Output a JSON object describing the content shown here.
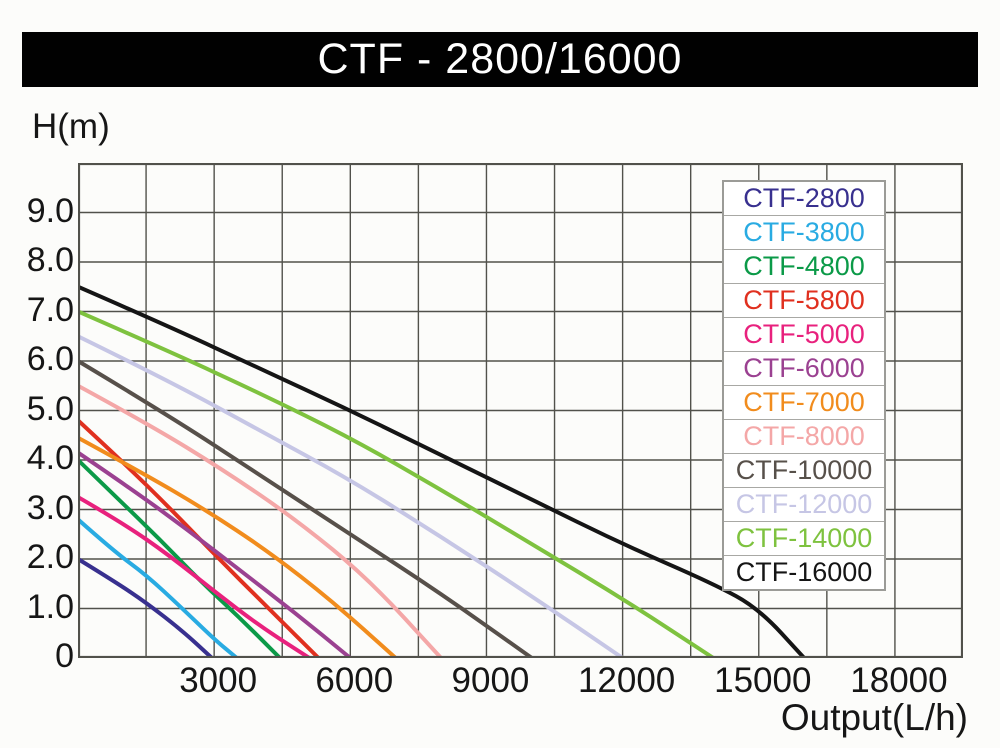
{
  "title": "CTF - 2800/16000",
  "colors": {
    "title_bg": "#010101",
    "title_text": "#ffffff",
    "grid": "#51514b",
    "axis_text": "#161616",
    "legend_border": "#9b9b97",
    "background": "#fcfcfa"
  },
  "chart_data": {
    "type": "line",
    "title": "CTF - 2800/16000",
    "xlabel": "Output(L/h)",
    "ylabel": "H(m)",
    "xlim": [
      0,
      19500
    ],
    "ylim": [
      0,
      10
    ],
    "grid": true,
    "grid_step_x": 1500,
    "grid_step_y": 1.0,
    "x_tick_values": [
      3000,
      6000,
      9000,
      12000,
      15000,
      18000
    ],
    "x_tick_labels": [
      "3000",
      "6000",
      "9000",
      "12000",
      "15000",
      "18000"
    ],
    "y_tick_values": [
      9,
      8,
      7,
      6,
      5,
      4,
      3,
      2,
      1,
      0
    ],
    "y_tick_labels": [
      "9.0",
      "8.0",
      "7.0",
      "6.0",
      "5.0",
      "4.0",
      "3.0",
      "2.0",
      "1.0",
      "0"
    ],
    "legend_position": "top-right-overlay",
    "series": [
      {
        "name": "CTF-2800",
        "color": "#38308f",
        "points": [
          [
            0,
            2.0
          ],
          [
            800,
            1.55
          ],
          [
            1500,
            1.12
          ],
          [
            2300,
            0.55
          ],
          [
            2950,
            0
          ]
        ]
      },
      {
        "name": "CTF-3800",
        "color": "#29abe2",
        "points": [
          [
            0,
            2.8
          ],
          [
            800,
            2.15
          ],
          [
            1500,
            1.68
          ],
          [
            2300,
            1.0
          ],
          [
            3000,
            0.38
          ],
          [
            3500,
            0
          ]
        ]
      },
      {
        "name": "CTF-4800",
        "color": "#0b9a48",
        "points": [
          [
            0,
            4.0
          ],
          [
            900,
            3.2
          ],
          [
            1800,
            2.4
          ],
          [
            2700,
            1.55
          ],
          [
            3600,
            0.78
          ],
          [
            4450,
            0
          ]
        ]
      },
      {
        "name": "CTF-5800",
        "color": "#e0301f",
        "points": [
          [
            0,
            4.8
          ],
          [
            1000,
            3.95
          ],
          [
            2000,
            3.05
          ],
          [
            3000,
            2.1
          ],
          [
            4200,
            1.0
          ],
          [
            5300,
            0
          ]
        ]
      },
      {
        "name": "CTF-5000",
        "color": "#e8217d",
        "points": [
          [
            0,
            3.25
          ],
          [
            1000,
            2.72
          ],
          [
            2000,
            2.08
          ],
          [
            3000,
            1.35
          ],
          [
            4000,
            0.65
          ],
          [
            5100,
            0
          ]
        ]
      },
      {
        "name": "CTF-6000",
        "color": "#9b4191",
        "points": [
          [
            0,
            4.15
          ],
          [
            1200,
            3.4
          ],
          [
            2400,
            2.6
          ],
          [
            3600,
            1.75
          ],
          [
            4800,
            0.9
          ],
          [
            6000,
            0
          ]
        ]
      },
      {
        "name": "CTF-7000",
        "color": "#f18c1d",
        "points": [
          [
            0,
            4.45
          ],
          [
            1400,
            3.75
          ],
          [
            2800,
            3.0
          ],
          [
            4200,
            2.15
          ],
          [
            5600,
            1.15
          ],
          [
            7000,
            0
          ]
        ]
      },
      {
        "name": "CTF-8000",
        "color": "#f4a7a7",
        "points": [
          [
            0,
            5.5
          ],
          [
            1600,
            4.7
          ],
          [
            3200,
            3.8
          ],
          [
            4800,
            2.8
          ],
          [
            6400,
            1.6
          ],
          [
            8000,
            0
          ]
        ]
      },
      {
        "name": "CTF-10000",
        "color": "#57504a",
        "points": [
          [
            0,
            6.0
          ],
          [
            2000,
            4.9
          ],
          [
            4000,
            3.7
          ],
          [
            6000,
            2.5
          ],
          [
            8000,
            1.3
          ],
          [
            10000,
            0
          ]
        ]
      },
      {
        "name": "CTF-12000",
        "color": "#c6c6e5",
        "points": [
          [
            0,
            6.5
          ],
          [
            2000,
            5.6
          ],
          [
            4000,
            4.6
          ],
          [
            6000,
            3.6
          ],
          [
            8000,
            2.45
          ],
          [
            10000,
            1.25
          ],
          [
            12000,
            0
          ]
        ]
      },
      {
        "name": "CTF-14000",
        "color": "#7ec23f",
        "points": [
          [
            0,
            7.0
          ],
          [
            2000,
            6.2
          ],
          [
            4000,
            5.35
          ],
          [
            6000,
            4.45
          ],
          [
            8000,
            3.4
          ],
          [
            10000,
            2.3
          ],
          [
            12000,
            1.2
          ],
          [
            14000,
            0
          ]
        ]
      },
      {
        "name": "CTF-16000",
        "color": "#151515",
        "points": [
          [
            0,
            7.5
          ],
          [
            2000,
            6.7
          ],
          [
            4000,
            5.85
          ],
          [
            6000,
            5.0
          ],
          [
            8000,
            4.1
          ],
          [
            10000,
            3.2
          ],
          [
            12000,
            2.3
          ],
          [
            14000,
            1.5
          ],
          [
            15000,
            1.0
          ],
          [
            16000,
            0
          ]
        ]
      }
    ]
  }
}
